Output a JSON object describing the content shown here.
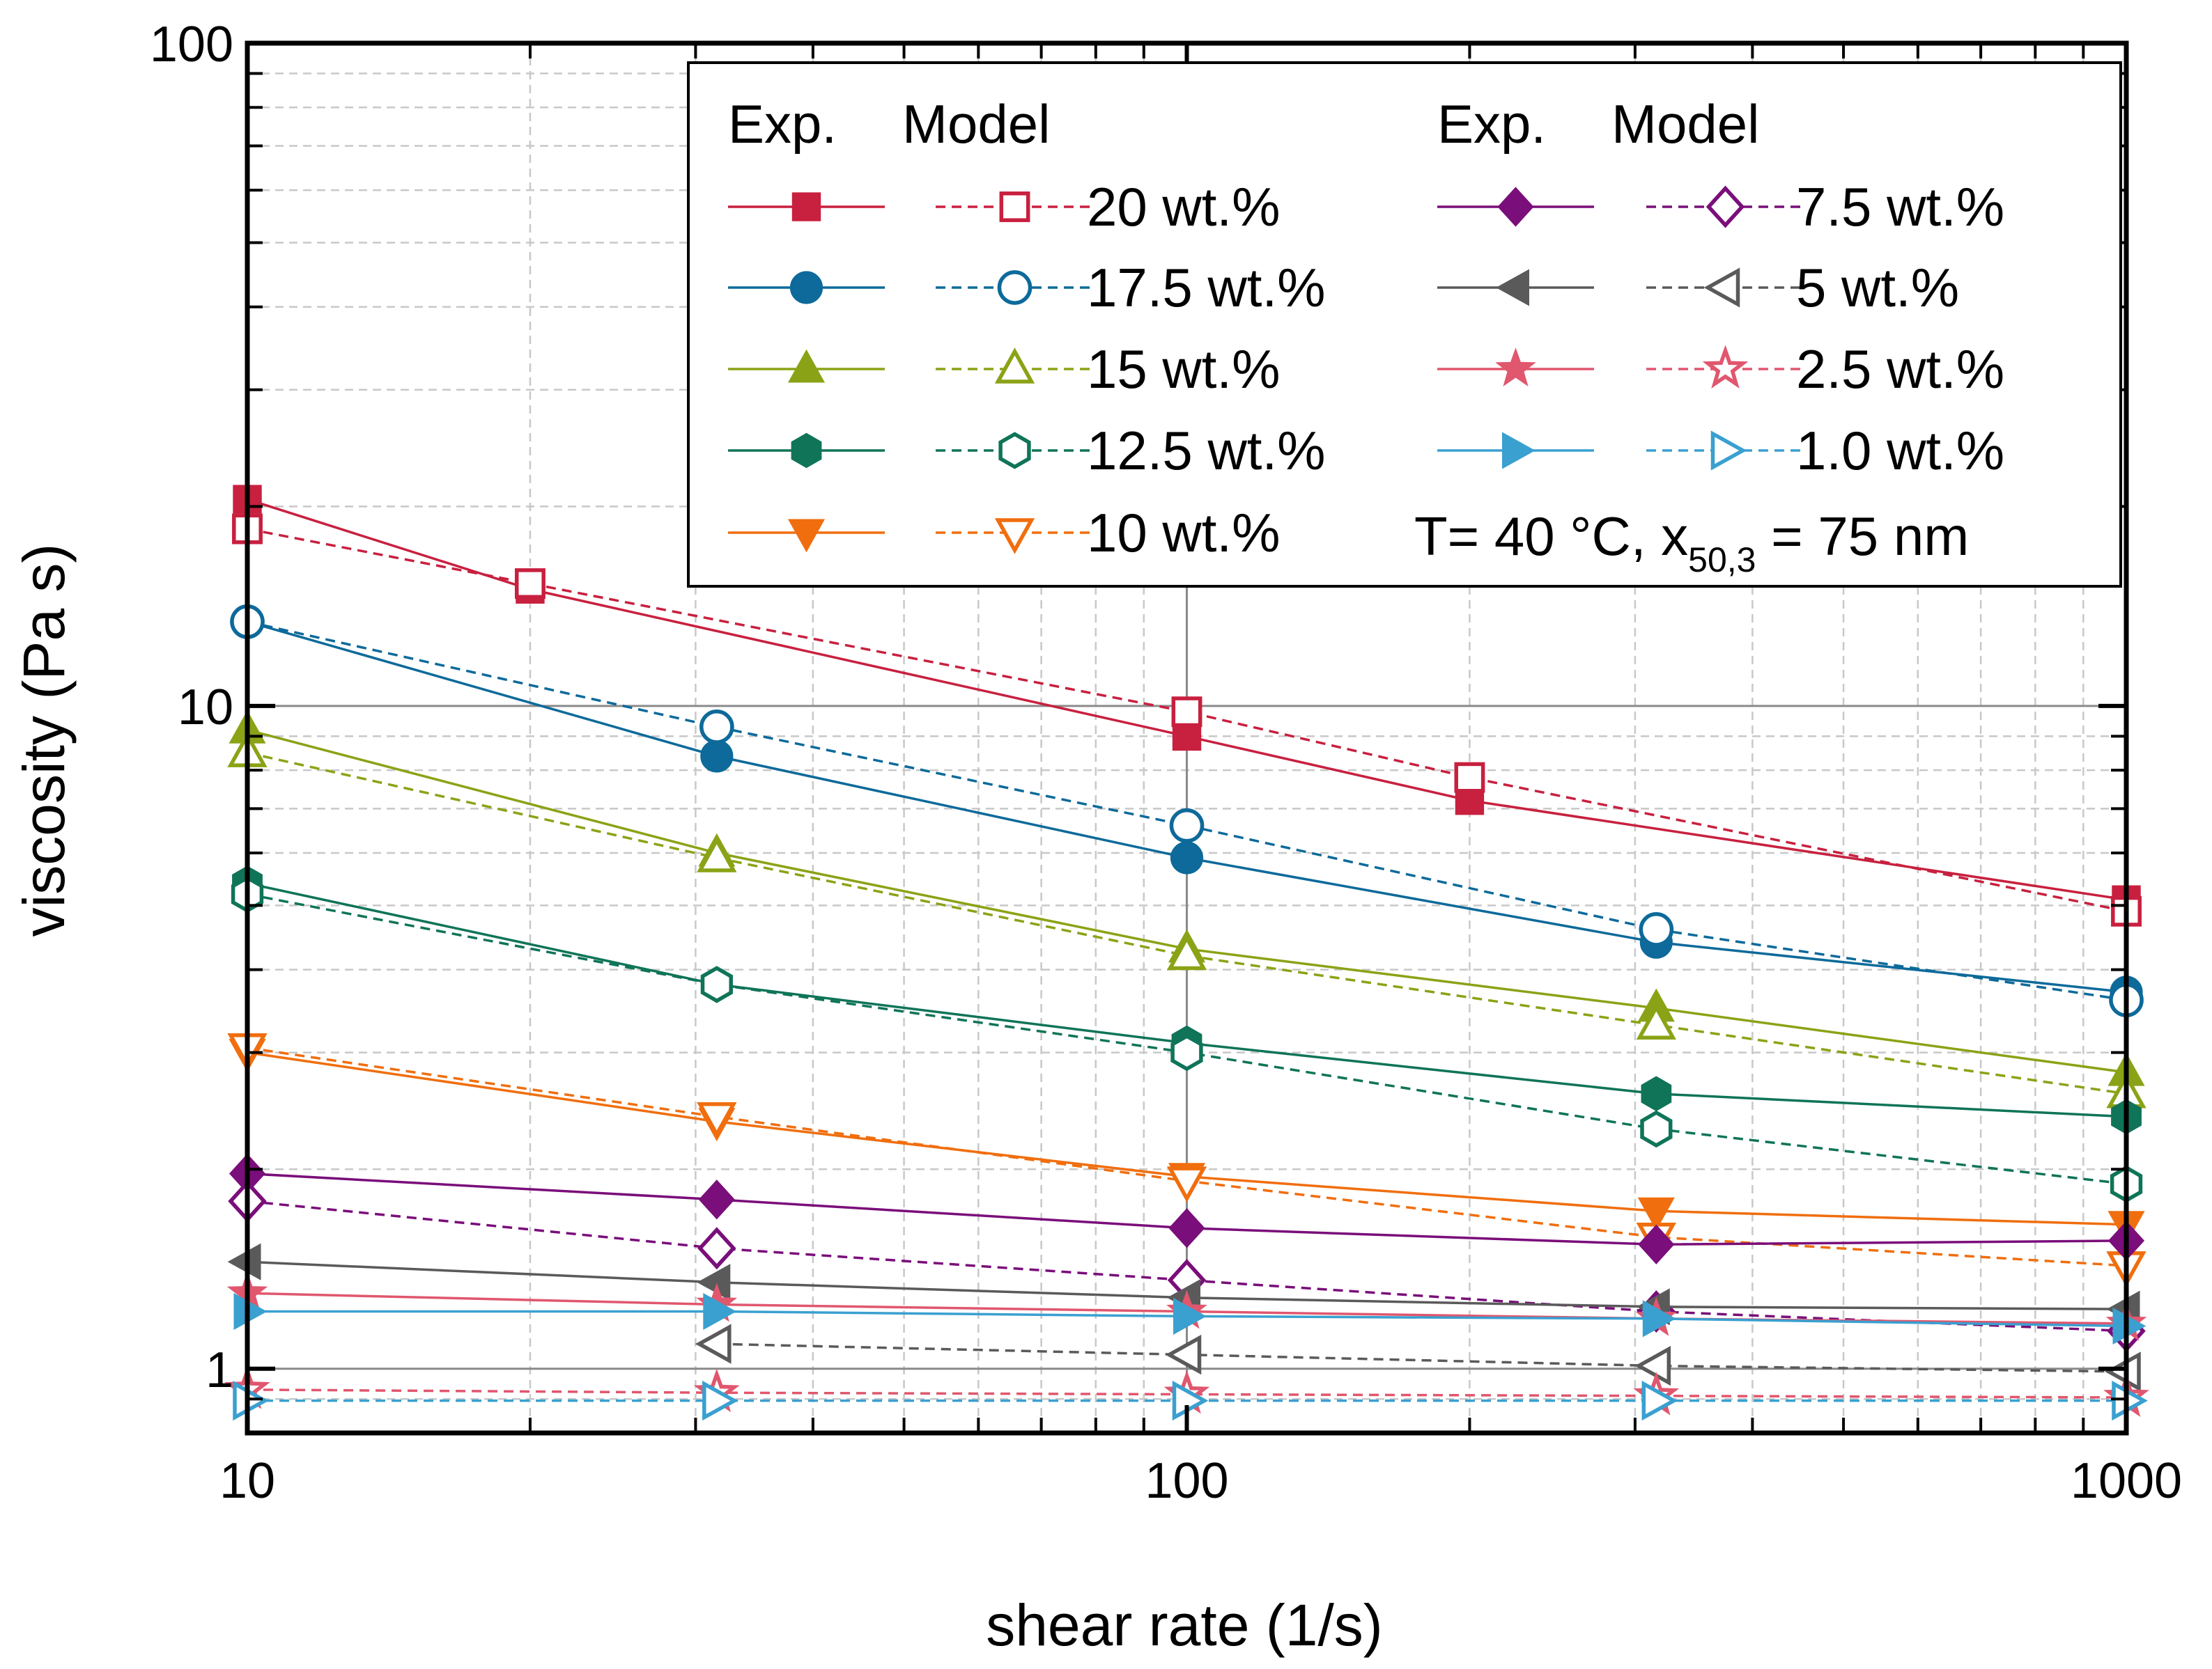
{
  "chart_data": {
    "type": "line",
    "xscale": "log",
    "yscale": "log",
    "xlabel": "shear rate (1/s)",
    "ylabel": "viscosity (Pa s)",
    "xlim": [
      10,
      1000
    ],
    "ylim": [
      0.8,
      100
    ],
    "xticks": [
      {
        "value": 10,
        "label": "10"
      },
      {
        "value": 100,
        "label": "100"
      },
      {
        "value": 1000,
        "label": "1000"
      }
    ],
    "yticks": [
      {
        "value": 1,
        "label": "1"
      },
      {
        "value": 10,
        "label": "10"
      },
      {
        "value": 100,
        "label": "100"
      }
    ],
    "grid": true,
    "legend": {
      "position": "top-right",
      "header_exp": "Exp.",
      "header_model": "Model",
      "condition_prefix": "T= 40 °C, x",
      "condition_sub": "50,3",
      "condition_suffix": " = 75 nm"
    },
    "series": [
      {
        "name": "20 wt.%",
        "color": "#c8203f",
        "marker": "square",
        "exp": {
          "x": [
            10,
            20,
            100,
            200,
            1000
          ],
          "y": [
            20.5,
            15.0,
            9.0,
            7.2,
            5.1
          ]
        },
        "model": {
          "x": [
            10,
            20,
            100,
            200,
            1000
          ],
          "y": [
            18.5,
            15.3,
            9.8,
            7.8,
            4.9
          ]
        }
      },
      {
        "name": "17.5 wt.%",
        "color": "#0d6a9a",
        "marker": "circle",
        "exp": {
          "x": [
            10,
            31.6,
            100,
            316,
            1000
          ],
          "y": [
            13.4,
            8.4,
            5.9,
            4.4,
            3.7
          ]
        },
        "model": {
          "x": [
            10,
            31.6,
            100,
            316,
            1000
          ],
          "y": [
            13.4,
            9.3,
            6.6,
            4.6,
            3.6
          ]
        }
      },
      {
        "name": "15 wt.%",
        "color": "#8aa316",
        "marker": "triangle-up",
        "exp": {
          "x": [
            10,
            31.6,
            100,
            316,
            1000
          ],
          "y": [
            9.2,
            6.0,
            4.3,
            3.5,
            2.8
          ]
        },
        "model": {
          "x": [
            10,
            31.6,
            100,
            316,
            1000
          ],
          "y": [
            8.5,
            5.9,
            4.2,
            3.3,
            2.6
          ]
        }
      },
      {
        "name": "12.5 wt.%",
        "color": "#0f7458",
        "marker": "hexagon",
        "exp": {
          "x": [
            10,
            31.6,
            100,
            316,
            1000
          ],
          "y": [
            5.4,
            3.8,
            3.1,
            2.6,
            2.4
          ]
        },
        "model": {
          "x": [
            10,
            31.6,
            100,
            316,
            1000
          ],
          "y": [
            5.2,
            3.8,
            3.0,
            2.3,
            1.9
          ]
        }
      },
      {
        "name": "10 wt.%",
        "color": "#f06e0e",
        "marker": "triangle-down",
        "exp": {
          "x": [
            10,
            31.6,
            100,
            316,
            1000
          ],
          "y": [
            3.0,
            2.36,
            1.95,
            1.73,
            1.65
          ]
        },
        "model": {
          "x": [
            10,
            31.6,
            100,
            316,
            1000
          ],
          "y": [
            3.05,
            2.4,
            1.92,
            1.58,
            1.43
          ]
        }
      },
      {
        "name": "7.5 wt.%",
        "color": "#7a0e7a",
        "marker": "diamond",
        "exp": {
          "x": [
            10,
            31.6,
            100,
            316,
            1000
          ],
          "y": [
            1.97,
            1.8,
            1.63,
            1.54,
            1.56
          ]
        },
        "model": {
          "x": [
            10,
            31.6,
            100,
            316,
            1000
          ],
          "y": [
            1.79,
            1.52,
            1.36,
            1.22,
            1.14
          ]
        }
      },
      {
        "name": "5 wt.%",
        "color": "#5a5a5a",
        "marker": "triangle-left",
        "exp": {
          "x": [
            10,
            31.6,
            100,
            316,
            1000
          ],
          "y": [
            1.45,
            1.35,
            1.28,
            1.24,
            1.23
          ]
        },
        "model": {
          "x": [
            31.6,
            100,
            316,
            1000
          ],
          "y": [
            1.09,
            1.05,
            1.01,
            0.99
          ]
        }
      },
      {
        "name": "2.5 wt.%",
        "color": "#e0576e",
        "marker": "star",
        "exp": {
          "x": [
            10,
            31.6,
            100,
            316,
            1000
          ],
          "y": [
            1.3,
            1.25,
            1.22,
            1.19,
            1.17
          ]
        },
        "model": {
          "x": [
            10,
            31.6,
            100,
            316,
            1000
          ],
          "y": [
            0.93,
            0.92,
            0.915,
            0.91,
            0.905
          ]
        }
      },
      {
        "name": "1.0 wt.%",
        "color": "#3aa0d0",
        "marker": "triangle-right",
        "exp": {
          "x": [
            10,
            31.6,
            100,
            316,
            1000
          ],
          "y": [
            1.22,
            1.22,
            1.2,
            1.19,
            1.16
          ]
        },
        "model": {
          "x": [
            10,
            31.6,
            100,
            316,
            1000
          ],
          "y": [
            0.895,
            0.895,
            0.895,
            0.895,
            0.895
          ]
        }
      }
    ]
  }
}
